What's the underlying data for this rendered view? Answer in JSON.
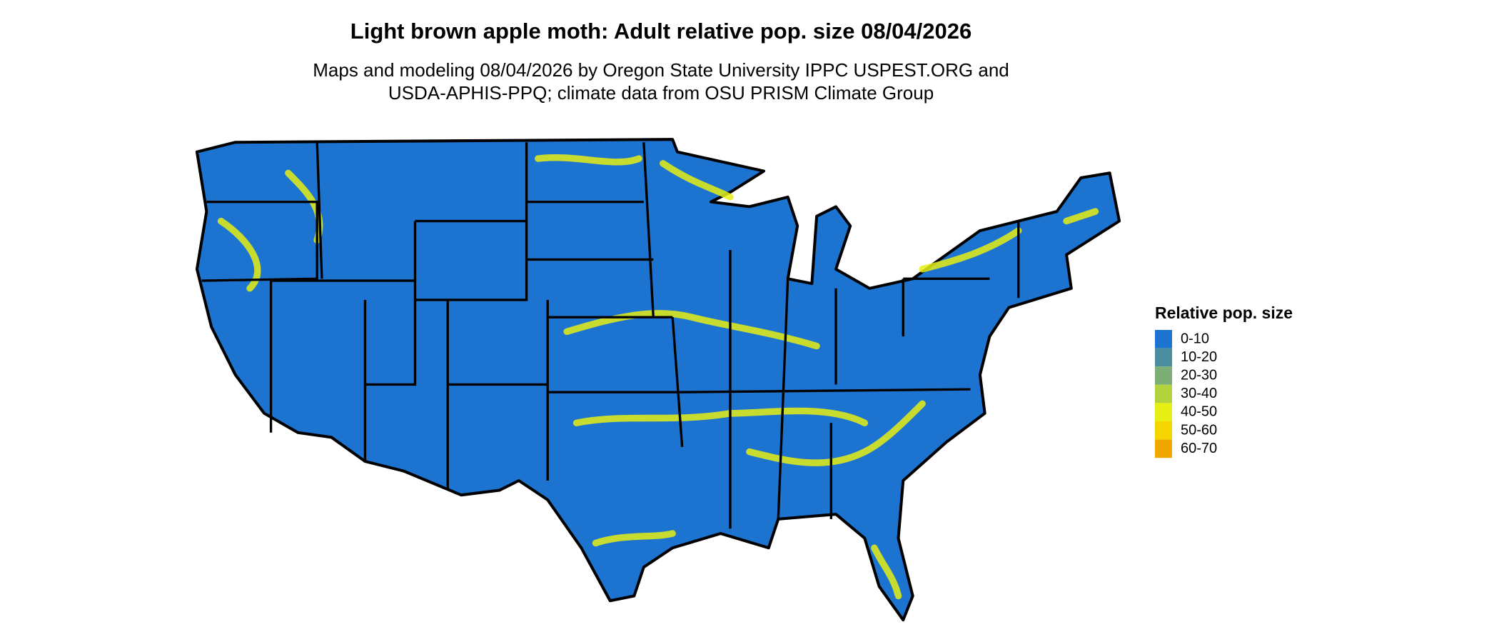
{
  "title": "Light brown apple moth: Adult relative pop. size 08/04/2026",
  "subtitle": [
    "Maps and modeling 08/04/2026 by Oregon State University IPPC USPEST.ORG and",
    "USDA-APHIS-PPQ; climate data from OSU PRISM Climate Group"
  ],
  "legend": {
    "title": "Relative pop. size",
    "items": [
      {
        "label": "0-10",
        "color": "#1c74d0"
      },
      {
        "label": "10-20",
        "color": "#4a8ea0"
      },
      {
        "label": "20-30",
        "color": "#7cae76"
      },
      {
        "label": "30-40",
        "color": "#b2d23e"
      },
      {
        "label": "40-50",
        "color": "#e6ee14"
      },
      {
        "label": "50-60",
        "color": "#f6d600"
      },
      {
        "label": "60-70",
        "color": "#f0a800"
      }
    ]
  }
}
